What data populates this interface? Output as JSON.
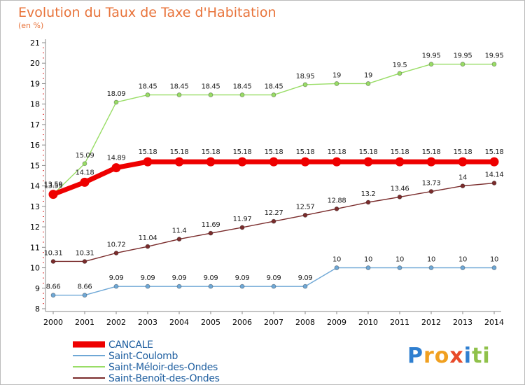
{
  "chart_data": {
    "type": "line",
    "title": "Evolution du Taux de Taxe d'Habitation",
    "subtitle": "(en %)",
    "x": [
      2000,
      2001,
      2002,
      2003,
      2004,
      2005,
      2006,
      2007,
      2008,
      2009,
      2010,
      2011,
      2012,
      2013,
      2014
    ],
    "ylim": [
      8,
      21
    ],
    "yticks": [
      8,
      9,
      10,
      11,
      12,
      13,
      14,
      15,
      16,
      17,
      18,
      19,
      20,
      21
    ],
    "grid": false,
    "legend_position": "bottom-left",
    "series": [
      {
        "name": "CANCALE",
        "color": "#ee0000",
        "values": [
          13.59,
          14.18,
          14.89,
          15.18,
          15.18,
          15.18,
          15.18,
          15.18,
          15.18,
          15.18,
          15.18,
          15.18,
          15.18,
          15.18,
          15.18
        ]
      },
      {
        "name": "Saint-Coulomb",
        "color": "#6fa8d6",
        "values": [
          8.66,
          8.66,
          9.09,
          9.09,
          9.09,
          9.09,
          9.09,
          9.09,
          9.09,
          10,
          10,
          10,
          10,
          10,
          10
        ]
      },
      {
        "name": "Saint-Méloir-des-Ondes",
        "color": "#99dd66",
        "values": [
          13.59,
          15.09,
          18.09,
          18.45,
          18.45,
          18.45,
          18.45,
          18.45,
          18.95,
          19,
          19,
          19.5,
          19.95,
          19.95,
          19.95
        ]
      },
      {
        "name": "Saint-Benoît-des-Ondes",
        "color": "#7a2c2c",
        "values": [
          10.31,
          10.31,
          10.72,
          11.04,
          11.4,
          11.69,
          11.97,
          12.27,
          12.57,
          12.88,
          13.2,
          13.46,
          13.73,
          14,
          14.14
        ]
      }
    ]
  },
  "legend": {
    "items": [
      "CANCALE",
      "Saint-Coulomb",
      "Saint-Méloir-des-Ondes",
      "Saint-Benoît-des-Ondes"
    ]
  },
  "logo": {
    "letters": [
      "P",
      "r",
      "o",
      "x",
      "i",
      "t",
      "i"
    ],
    "colors": [
      "#2f7fd0",
      "#f0a020",
      "#f0a020",
      "#e84a2a",
      "#2f7fd0",
      "#8fc14a",
      "#8fc14a"
    ]
  }
}
